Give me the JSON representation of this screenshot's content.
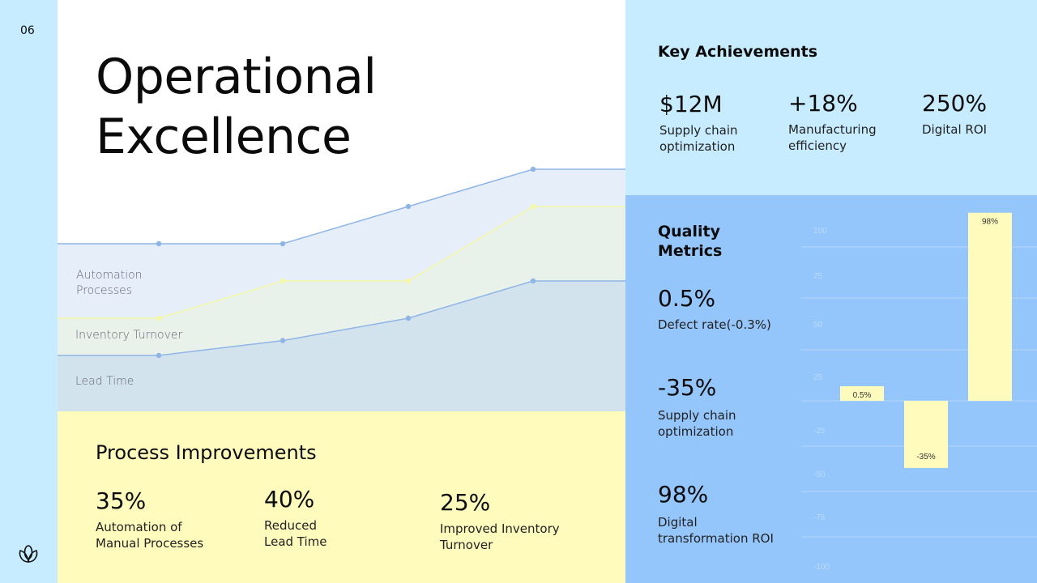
{
  "page_number": "06",
  "title_line1": "Operational",
  "title_line2": "Excellence",
  "process": {
    "heading": "Process Improvements",
    "items": [
      {
        "value": "35%",
        "label1": "Automation of",
        "label2": "Manual Processes"
      },
      {
        "value": "40%",
        "label1": "Reduced",
        "label2": "Lead Time"
      },
      {
        "value": "25%",
        "label1": "Improved Inventory",
        "label2": "Turnover"
      }
    ]
  },
  "key": {
    "heading": "Key Achievements",
    "items": [
      {
        "value": "$12M",
        "label1": "Supply chain",
        "label2": "optimization"
      },
      {
        "value": "+18%",
        "label1": "Manufacturing",
        "label2": "efficiency"
      },
      {
        "value": "250%",
        "label1": "Digital ROI",
        "label2": ""
      }
    ]
  },
  "quality": {
    "heading1": "Quality",
    "heading2": "Metrics",
    "items": [
      {
        "value": "0.5%",
        "label1": "Defect rate(-0.3%)",
        "label2": ""
      },
      {
        "value": "-35%",
        "label1": "Supply chain",
        "label2": "optimization"
      },
      {
        "value": "98%",
        "label1": "Digital",
        "label2": "transformation ROI"
      }
    ]
  },
  "chart_data": [
    {
      "type": "area",
      "stacked": true,
      "series": [
        {
          "name": "Lead Time",
          "values": [
            15,
            19,
            25,
            35
          ],
          "color": "#8fb5e6"
        },
        {
          "name": "Inventory Turnover",
          "values": [
            10,
            16,
            10,
            20
          ],
          "color": "#f3f7b0"
        },
        {
          "name": "Automation Processes",
          "values": [
            20,
            10,
            20,
            10
          ],
          "color": "#8fb5e6"
        }
      ],
      "labels": {
        "a1": "Automation",
        "a2": "Processes",
        "inv": "Inventory Turnover",
        "lead": "Lead Time"
      }
    },
    {
      "type": "bar",
      "categories": [
        "Defect rate",
        "Supply chain optimization",
        "Digital transformation ROI"
      ],
      "values": [
        0.5,
        -35,
        98
      ],
      "data_labels": [
        "0.5%",
        "-35%",
        "98%"
      ],
      "yticks": [
        "100",
        "75",
        "50",
        "25",
        "-25",
        "-50",
        "-75",
        "-100"
      ],
      "ylim": [
        -100,
        100
      ],
      "bar_color": "#fffbbd"
    }
  ]
}
